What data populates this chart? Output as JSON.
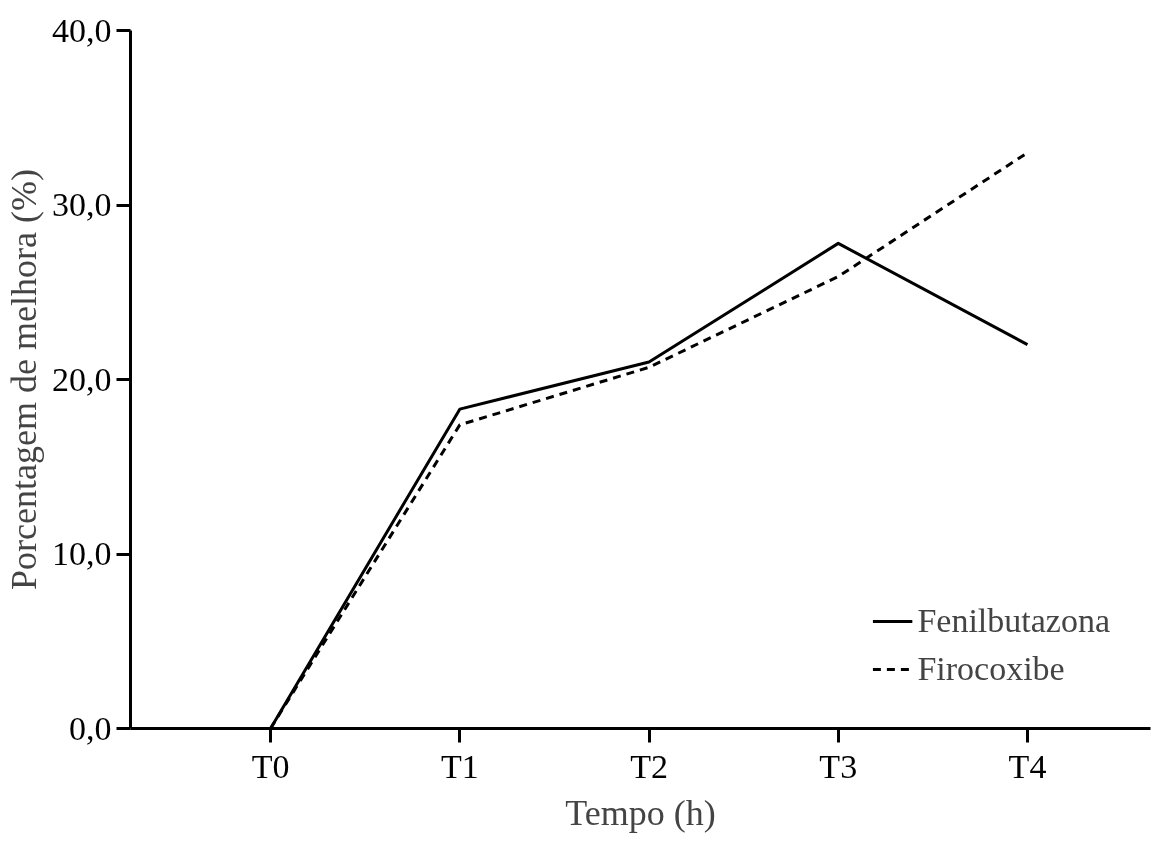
{
  "chart_data": {
    "type": "line",
    "xlabel": "Tempo (h)",
    "ylabel": "Porcentagem de melhora (%)",
    "categories": [
      "T0",
      "T1",
      "T2",
      "T3",
      "T4"
    ],
    "series": [
      {
        "name": "Fenilbutazona",
        "color": "#000000",
        "line_style": "solid",
        "values": [
          0,
          18.3,
          21.0,
          27.8,
          22.0
        ]
      },
      {
        "name": "Firocoxibe",
        "color": "#000000",
        "line_style": "dashed",
        "values": [
          0,
          17.4,
          20.7,
          25.9,
          33.0
        ]
      }
    ],
    "ylim": [
      0,
      40
    ],
    "yticks": [
      {
        "value": 0,
        "label": "0,0"
      },
      {
        "value": 10,
        "label": "10,0"
      },
      {
        "value": 20,
        "label": "20,0"
      },
      {
        "value": 30,
        "label": "30,0"
      },
      {
        "value": 40,
        "label": "40,0"
      }
    ],
    "grid": false,
    "legend": "bottom right",
    "marker": "none"
  }
}
